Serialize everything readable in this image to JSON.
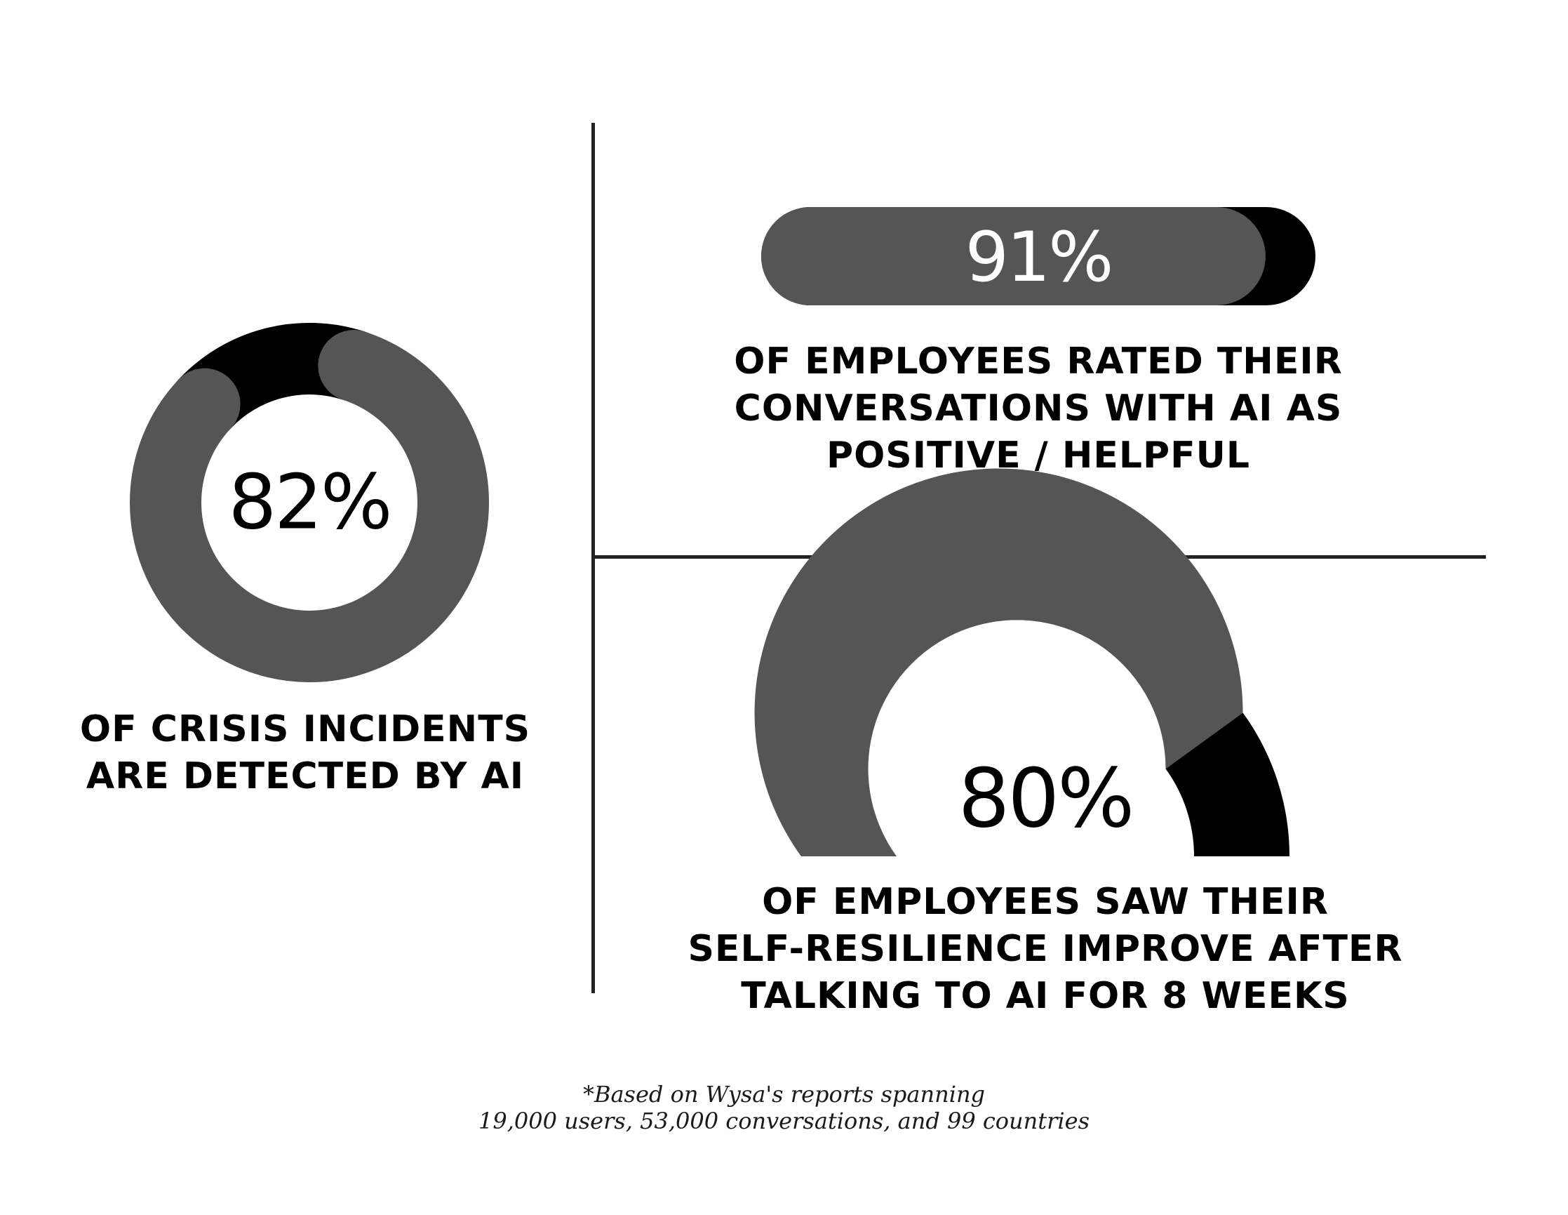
{
  "chart_data": [
    {
      "type": "pie",
      "style": "donut",
      "value_label": "82%",
      "values": [
        82,
        18
      ],
      "colors": [
        "#555555",
        "#000000"
      ],
      "caption": [
        "OF CRISIS INCIDENTS",
        "ARE DETECTED BY AI"
      ]
    },
    {
      "type": "bar",
      "style": "progress-pill",
      "value_label": "91%",
      "values": [
        91
      ],
      "colors": [
        "#555555",
        "#000000"
      ],
      "caption": [
        "OF EMPLOYEES RATED THEIR",
        "CONVERSATIONS WITH AI AS",
        "POSITIVE / HELPFUL"
      ]
    },
    {
      "type": "pie",
      "style": "semicircle-gauge",
      "value_label": "80%",
      "values": [
        80,
        20
      ],
      "colors": [
        "#555555",
        "#000000"
      ],
      "caption": [
        "OF EMPLOYEES SAW THEIR",
        "SELF-RESILIENCE IMPROVE AFTER",
        "TALKING TO AI FOR 8 WEEKS"
      ]
    }
  ],
  "footnote": [
    "*Based on Wysa's reports spanning",
    "19,000 users, 53,000 conversations, and 99 countries"
  ]
}
